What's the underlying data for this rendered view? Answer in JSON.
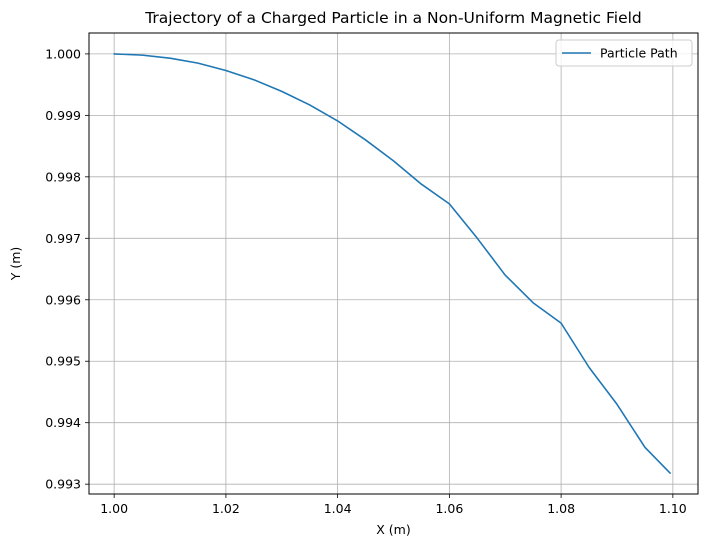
{
  "chart_data": {
    "type": "line",
    "title": "Trajectory of a Charged Particle in a Non-Uniform Magnetic Field",
    "xlabel": "X (m)",
    "ylabel": "Y (m)",
    "xlim": [
      0.9955,
      1.1045
    ],
    "ylim": [
      0.99284,
      1.00034
    ],
    "xticks": [
      1.0,
      1.02,
      1.04,
      1.06,
      1.08,
      1.1
    ],
    "xtick_labels": [
      "1.00",
      "1.02",
      "1.04",
      "1.06",
      "1.08",
      "1.10"
    ],
    "yticks": [
      0.993,
      0.994,
      0.995,
      0.996,
      0.997,
      0.998,
      0.999,
      1.0
    ],
    "ytick_labels": [
      "0.993",
      "0.994",
      "0.995",
      "0.996",
      "0.997",
      "0.998",
      "0.999",
      "1.000"
    ],
    "grid": true,
    "legend_position": "top-right",
    "series": [
      {
        "name": "Particle Path",
        "color": "#1f77b4",
        "x": [
          1.0,
          1.005,
          1.01,
          1.015,
          1.02,
          1.025,
          1.03,
          1.035,
          1.04,
          1.045,
          1.05,
          1.055,
          1.06,
          1.065,
          1.07,
          1.075,
          1.08,
          1.085,
          1.09,
          1.095,
          1.0995
        ],
        "y": [
          1.0,
          0.99998,
          0.99993,
          0.99985,
          0.99973,
          0.99958,
          0.99939,
          0.99917,
          0.99891,
          0.9986,
          0.99826,
          0.99788,
          0.99756,
          0.997,
          0.9964,
          0.99595,
          0.99562,
          0.9949,
          0.9943,
          0.9936,
          0.99318
        ]
      }
    ]
  }
}
